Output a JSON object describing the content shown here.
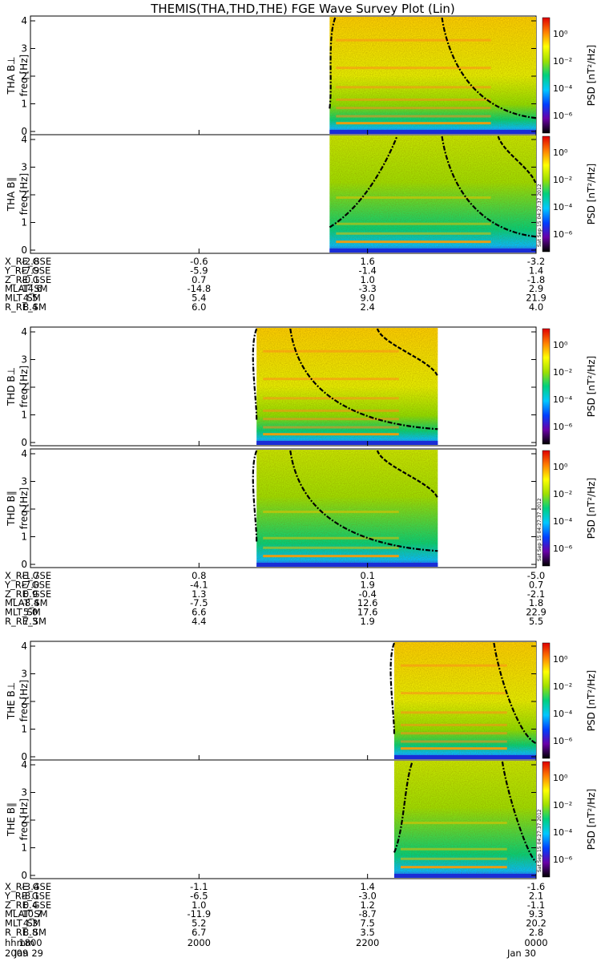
{
  "title": "THEMIS(THA,THD,THE) FGE Wave Survey Plot (Lin)",
  "colorbar": {
    "label": "PSD [nT²/Hz]",
    "ticks": [
      "10⁰",
      "10⁻²",
      "10⁻⁴",
      "10⁻⁶"
    ],
    "stamp": "Sat Sep 15 04:27:37 2012"
  },
  "freq_label": "freq [Hz]",
  "y_ticks": [
    "0",
    "1",
    "2",
    "3",
    "4"
  ],
  "probes": [
    {
      "id": "THA",
      "panel_labels": [
        "THA B⊥",
        "THA B∥"
      ],
      "ephemeris": [
        {
          "name": "X_RE_GSE",
          "values": [
            "-2.8",
            "-0.6",
            "1.6",
            "-3.2"
          ]
        },
        {
          "name": "Y_RE_GSE",
          "values": [
            "-7.9",
            "-5.9",
            "-1.4",
            "1.4"
          ]
        },
        {
          "name": "Z_RE_GSE",
          "values": [
            "-0.1",
            "0.7",
            "1.0",
            "-1.8"
          ]
        },
        {
          "name": "MLAT_SM",
          "values": [
            "-14.6",
            "-14.8",
            "-3.3",
            "2.9"
          ]
        },
        {
          "name": "MLT_SM",
          "values": [
            "4.5",
            "5.4",
            "9.0",
            "21.9"
          ]
        },
        {
          "name": "R_RE_SM",
          "values": [
            "8.4",
            "6.0",
            "2.4",
            "4.0"
          ]
        }
      ]
    },
    {
      "id": "THD",
      "panel_labels": [
        "THD B⊥",
        "THD B∥"
      ],
      "ephemeris": [
        {
          "name": "X_RE_GSE",
          "values": [
            "-1.7",
            "0.8",
            "0.1",
            "-5.0"
          ]
        },
        {
          "name": "Y_RE_GSE",
          "values": [
            "-7.0",
            "-4.1",
            "1.9",
            "0.7"
          ]
        },
        {
          "name": "Z_RE_GSE",
          "values": [
            "0.9",
            "1.3",
            "-0.4",
            "-2.1"
          ]
        },
        {
          "name": "MLAT_SM",
          "values": [
            "-8.4",
            "-7.5",
            "12.6",
            "1.8"
          ]
        },
        {
          "name": "MLT_SM",
          "values": [
            "5.0",
            "6.6",
            "17.6",
            "22.9"
          ]
        },
        {
          "name": "R_RE_SM",
          "values": [
            "7.3",
            "4.4",
            "1.9",
            "5.5"
          ]
        }
      ]
    },
    {
      "id": "THE",
      "panel_labels": [
        "THE B⊥",
        "THE B∥"
      ],
      "ephemeris": [
        {
          "name": "X_RE_GSE",
          "values": [
            "-3.4",
            "-1.1",
            "1.4",
            "-1.6"
          ]
        },
        {
          "name": "Y_RE_GSE",
          "values": [
            "-8.1",
            "-6.5",
            "-3.0",
            "2.1"
          ]
        },
        {
          "name": "Z_RE_GSE",
          "values": [
            "0.4",
            "1.0",
            "1.2",
            "-1.1"
          ]
        },
        {
          "name": "MLAT_SM",
          "values": [
            "-10.7",
            "-11.9",
            "-8.7",
            "9.3"
          ]
        },
        {
          "name": "MLT_SM",
          "values": [
            "4.3",
            "5.2",
            "7.5",
            "20.2"
          ]
        },
        {
          "name": "R_RE_SM",
          "values": [
            "8.8",
            "6.7",
            "3.5",
            "2.8"
          ]
        }
      ]
    }
  ],
  "time_axis": {
    "label": "hhmm",
    "ticks": [
      "1800",
      "2000",
      "2200",
      "0000"
    ],
    "date_label": "2009",
    "date_start": "Jan 29",
    "date_end": "Jan 30"
  },
  "chart_data": {
    "type": "heatmap",
    "title": "THEMIS(THA,THD,THE) FGE Wave Survey Plot (Lin)",
    "x_unit": "hhmm",
    "x_range": [
      "2009-01-29 1800",
      "2009-01-30 0000"
    ],
    "y_range": [
      0,
      4
    ],
    "ylabel": "freq [Hz]",
    "z_label": "PSD [nT²/Hz]",
    "z_scale": "log",
    "z_range": [
      1e-06,
      10
    ],
    "colormap": [
      "#000000",
      "#6a00a8",
      "#0040ff",
      "#00c8ff",
      "#00d080",
      "#a0e000",
      "#ffff00",
      "#ff8000",
      "#e00000"
    ],
    "line_color": "#000000",
    "panels": [
      {
        "probe": "THA",
        "component": "B⊥",
        "data_start": "2133",
        "data_end": "0000",
        "curves_at_top": [
          "2137",
          "2253",
          "2253"
        ]
      },
      {
        "probe": "THA",
        "component": "B∥",
        "data_start": "2133",
        "data_end": "0000",
        "curves_at_top": [
          "2221",
          "2253",
          "2333"
        ]
      },
      {
        "probe": "THD",
        "component": "B⊥",
        "data_start": "2041",
        "data_end": "2250",
        "curves_at_top": [
          "2041",
          "2105",
          "2207"
        ]
      },
      {
        "probe": "THD",
        "component": "B∥",
        "data_start": "2041",
        "data_end": "2250",
        "curves_at_top": [
          "2041",
          "2105",
          "2207"
        ]
      },
      {
        "probe": "THE",
        "component": "B⊥",
        "data_start": "2219",
        "data_end": "0000",
        "curves_at_top": [
          "2219",
          "2330",
          "2330"
        ]
      },
      {
        "probe": "THE",
        "component": "B∥",
        "data_start": "2219",
        "data_end": "0000",
        "curves_at_top": [
          "2232",
          "2336",
          "2336"
        ]
      }
    ]
  }
}
